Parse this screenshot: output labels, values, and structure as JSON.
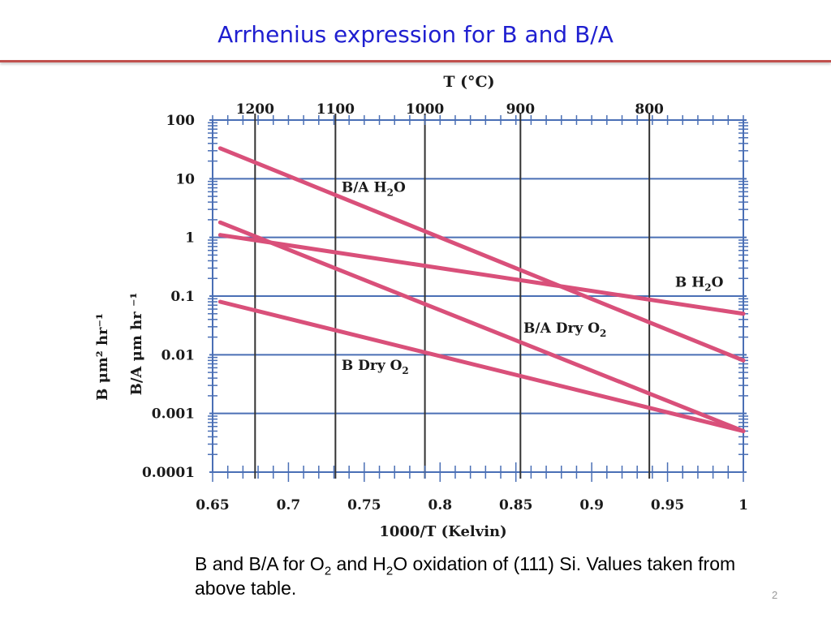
{
  "slide": {
    "title": "Arrhenius expression for B and B/A",
    "page_number": "2"
  },
  "caption": {
    "part1": "B and B/A for O",
    "sub1": "2",
    "part2": " and H",
    "sub2": "2",
    "part3": "O oxidation of (111) Si.  Values taken from above table."
  },
  "colors": {
    "title": "#1f1fd0",
    "title_rule": "#c0504d",
    "data_line": "#d9507a",
    "grid_horizontal": "#4a6fb5",
    "grid_vertical": "#333333"
  },
  "chart_data": {
    "type": "line",
    "xlabel": "1000/T (Kelvin)",
    "top_axis_label": "T (°C)",
    "ylabel_B": "B μm² hr⁻¹",
    "ylabel_BA": "B/A μm hr ⁻¹",
    "xlim": [
      0.65,
      1.0
    ],
    "ylim": [
      0.0001,
      100
    ],
    "y_scale": "log",
    "grid": true,
    "x_ticks": [
      {
        "value": 0.65,
        "label": "0.65"
      },
      {
        "value": 0.7,
        "label": "0.7"
      },
      {
        "value": 0.75,
        "label": "0.75"
      },
      {
        "value": 0.8,
        "label": "0.8"
      },
      {
        "value": 0.85,
        "label": "0.85"
      },
      {
        "value": 0.9,
        "label": "0.9"
      },
      {
        "value": 0.95,
        "label": "0.95"
      },
      {
        "value": 1.0,
        "label": "1"
      }
    ],
    "y_ticks": [
      {
        "value": 100,
        "label": "100"
      },
      {
        "value": 10,
        "label": "10"
      },
      {
        "value": 1,
        "label": "1"
      },
      {
        "value": 0.1,
        "label": "0.1"
      },
      {
        "value": 0.01,
        "label": "0.01"
      },
      {
        "value": 0.001,
        "label": "0.001"
      },
      {
        "value": 0.0001,
        "label": "0.0001"
      }
    ],
    "top_ticks": [
      {
        "x": 0.678,
        "label": "1200"
      },
      {
        "x": 0.731,
        "label": "1100"
      },
      {
        "x": 0.79,
        "label": "1000"
      },
      {
        "x": 0.853,
        "label": "900"
      },
      {
        "x": 0.938,
        "label": "800"
      }
    ],
    "series": [
      {
        "name": "B/A H2O",
        "name_main": "B/A H",
        "name_sub": "2",
        "name_tail": "O",
        "x": [
          0.655,
          1.0
        ],
        "y": [
          33,
          0.008
        ],
        "label_x": 0.735,
        "label_y": 6.0
      },
      {
        "name": "B H2O",
        "name_main": "B H",
        "name_sub": "2",
        "name_tail": "O",
        "x": [
          0.655,
          1.0
        ],
        "y": [
          1.1,
          0.05
        ],
        "label_x": 0.955,
        "label_y": 0.145
      },
      {
        "name": "B/A Dry O2",
        "name_main": "B/A Dry O",
        "name_sub": "2",
        "name_tail": "",
        "x": [
          0.655,
          1.0
        ],
        "y": [
          1.8,
          0.0005
        ],
        "label_x": 0.855,
        "label_y": 0.024
      },
      {
        "name": "B Dry O2",
        "name_main": "B Dry O",
        "name_sub": "2",
        "name_tail": "",
        "x": [
          0.655,
          1.0
        ],
        "y": [
          0.08,
          0.0005
        ],
        "label_x": 0.735,
        "label_y": 0.0055
      }
    ]
  }
}
